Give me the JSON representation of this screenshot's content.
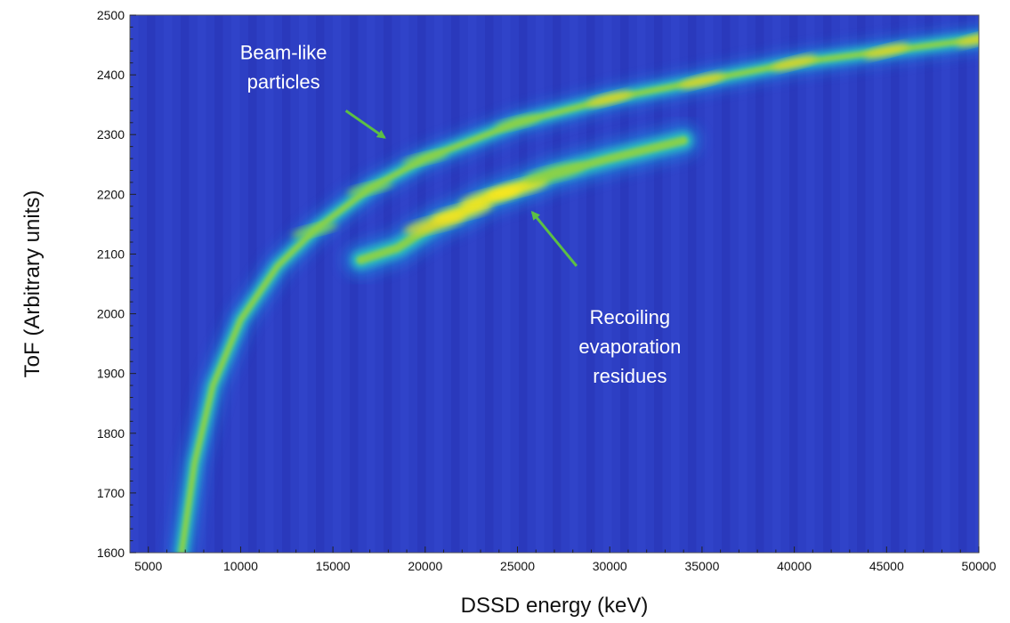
{
  "chart_data": {
    "type": "heatmap",
    "title": "",
    "xlabel": "DSSD energy (keV)",
    "ylabel": "ToF (Arbitrary units)",
    "xlim": [
      4000,
      50000
    ],
    "ylim": [
      1600,
      2500
    ],
    "x_ticks": [
      "5000",
      "10000",
      "15000",
      "20000",
      "25000",
      "30000",
      "35000",
      "40000",
      "45000",
      "50000"
    ],
    "y_ticks": [
      "1600",
      "1700",
      "1800",
      "1900",
      "2000",
      "2100",
      "2200",
      "2300",
      "2400",
      "2500"
    ],
    "colormap": [
      "#2d3fc4",
      "#1f8de0",
      "#2ac2c0",
      "#8ad24a",
      "#e6d52a",
      "#ffe81a"
    ],
    "background_color": "#2d3fc4",
    "grid": false,
    "series": [
      {
        "points": [
          {
            "x": 6800,
            "y": 1600,
            "intensity": 0.35
          },
          {
            "x": 7500,
            "y": 1750,
            "intensity": 0.4
          },
          {
            "x": 8500,
            "y": 1880,
            "intensity": 0.45
          },
          {
            "x": 10000,
            "y": 1990,
            "intensity": 0.5
          },
          {
            "x": 12000,
            "y": 2080,
            "intensity": 0.55
          },
          {
            "x": 14000,
            "y": 2140,
            "intensity": 0.6
          },
          {
            "x": 17000,
            "y": 2210,
            "intensity": 0.6
          },
          {
            "x": 20000,
            "y": 2260,
            "intensity": 0.62
          },
          {
            "x": 25000,
            "y": 2320,
            "intensity": 0.65
          },
          {
            "x": 30000,
            "y": 2360,
            "intensity": 0.72
          },
          {
            "x": 35000,
            "y": 2390,
            "intensity": 0.78
          },
          {
            "x": 40000,
            "y": 2420,
            "intensity": 0.8
          },
          {
            "x": 45000,
            "y": 2440,
            "intensity": 0.82
          },
          {
            "x": 50000,
            "y": 2460,
            "intensity": 0.85
          }
        ]
      },
      {
        "points": [
          {
            "x": 16500,
            "y": 2090,
            "intensity": 0.25
          },
          {
            "x": 18500,
            "y": 2110,
            "intensity": 0.4
          },
          {
            "x": 20500,
            "y": 2150,
            "intensity": 0.7
          },
          {
            "x": 22000,
            "y": 2170,
            "intensity": 0.9
          },
          {
            "x": 23500,
            "y": 2195,
            "intensity": 1.0
          },
          {
            "x": 25000,
            "y": 2210,
            "intensity": 0.9
          },
          {
            "x": 27000,
            "y": 2235,
            "intensity": 0.6
          },
          {
            "x": 30000,
            "y": 2260,
            "intensity": 0.35
          },
          {
            "x": 34000,
            "y": 2290,
            "intensity": 0.2
          }
        ]
      }
    ],
    "annotations": [
      {
        "lines": [
          "Beam-like",
          "particles"
        ],
        "arrow_from": {
          "x": 15700,
          "y": 2340
        },
        "arrow_to": {
          "x": 17800,
          "y": 2295
        },
        "arrow_color": "#5cbf45"
      },
      {
        "lines": [
          "Recoiling",
          "evaporation",
          "residues"
        ],
        "arrow_from": {
          "x": 28200,
          "y": 2080
        },
        "arrow_to": {
          "x": 25800,
          "y": 2170
        },
        "arrow_color": "#5cbf45"
      }
    ]
  }
}
